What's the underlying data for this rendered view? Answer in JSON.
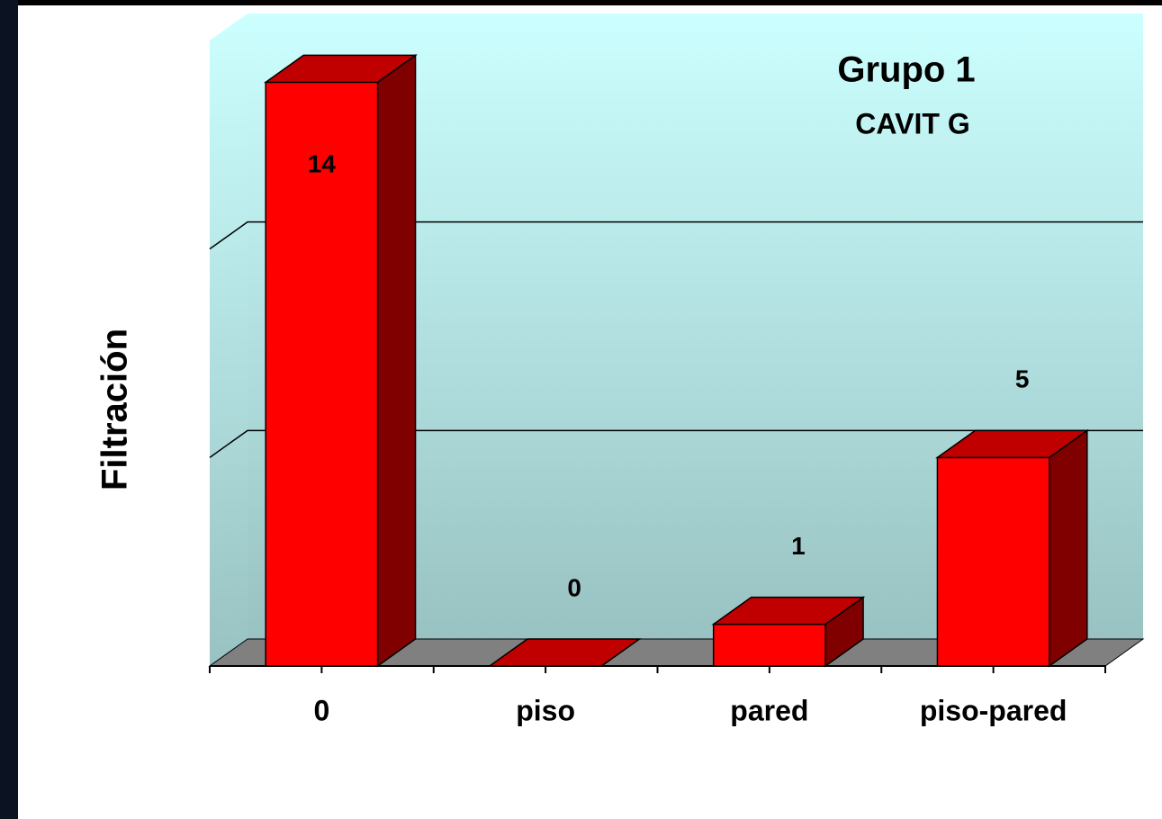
{
  "chart_data": {
    "type": "bar",
    "title": "Grupo 1",
    "subtitle": "CAVIT G",
    "y_label": "Filtración",
    "categories": [
      "0",
      "piso",
      "pared",
      "piso-pared"
    ],
    "values": [
      14,
      0,
      1,
      5
    ],
    "color": "#ff0000",
    "ylim": [
      0,
      15
    ],
    "yticks": [
      5,
      10
    ],
    "grid": true
  }
}
